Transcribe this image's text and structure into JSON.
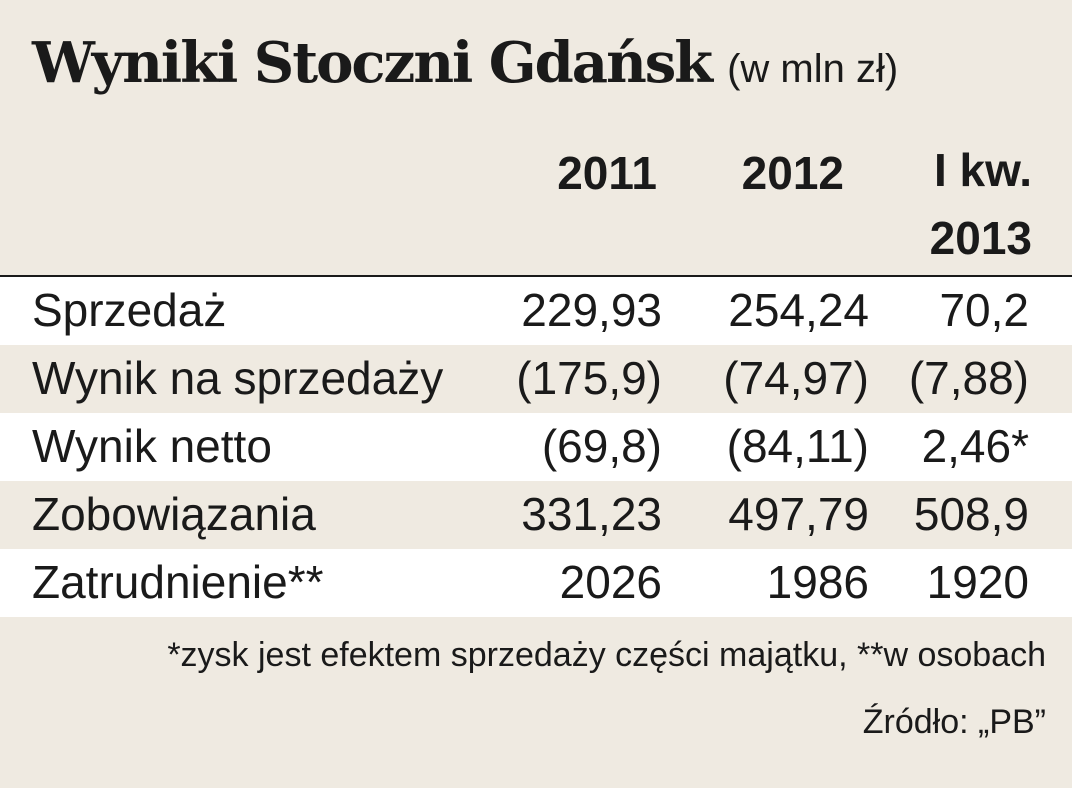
{
  "header": {
    "title": "Wyniki Stoczni Gdańsk",
    "unit": "(w mln zł)"
  },
  "chart_data": {
    "type": "table",
    "title": "Wyniki Stoczni Gdańsk",
    "subtitle": "(w mln zł)",
    "columns": [
      "2011",
      "2012",
      "I kw. 2013"
    ],
    "column_heads": {
      "c2011": "2011",
      "c2012": "2012",
      "q1_line1": "I kw.",
      "q1_line2": "2013"
    },
    "rows": [
      {
        "label": "Sprzedaż",
        "values": [
          "229,93",
          "254,24",
          "70,2"
        ]
      },
      {
        "label": "Wynik na sprzedaży",
        "values": [
          "(175,9)",
          "(74,97)",
          "(7,88)"
        ]
      },
      {
        "label": "Wynik netto",
        "values": [
          "(69,8)",
          "(84,11)",
          "2,46*"
        ]
      },
      {
        "label": "Zobowiązania",
        "values": [
          "331,23",
          "497,79",
          "508,9"
        ]
      },
      {
        "label": "Zatrudnienie**",
        "values": [
          "2026",
          "1986",
          "1920"
        ]
      }
    ]
  },
  "footnote": "*zysk jest efektem sprzedaży części majątku, **w osobach",
  "source": "Źródło: „PB”",
  "colors": {
    "background": "#efeae1",
    "row_alt": "#ffffff",
    "text": "#1a1a1a"
  }
}
